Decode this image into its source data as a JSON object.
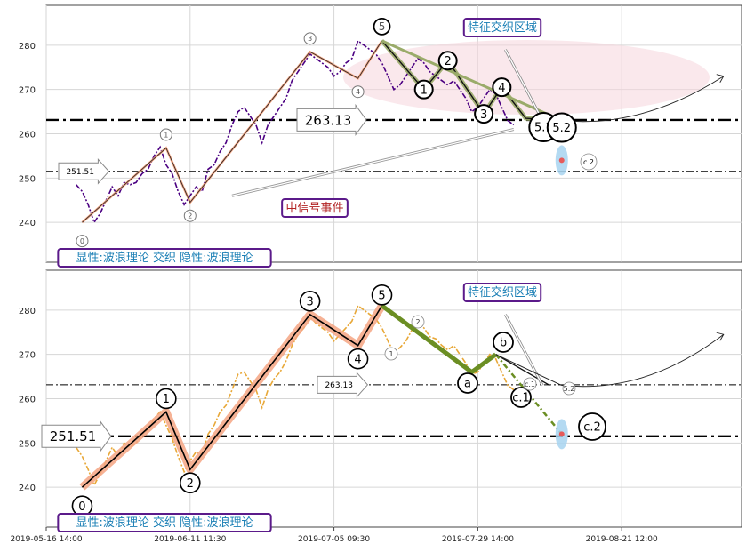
{
  "chart_data": [
    {
      "type": "line",
      "panel": "top",
      "y_ticks": [
        240,
        250,
        260,
        270,
        280
      ],
      "ylim": [
        231,
        289
      ],
      "grid": true,
      "price_series": [
        {
          "name": "",
          "color": "#4b0082",
          "style": "dashed",
          "points": [
            [
              0.5,
              248.5
            ],
            [
              1,
              247
            ],
            [
              1.5,
              244
            ],
            [
              2,
              240
            ],
            [
              2.5,
              242
            ],
            [
              3,
              245
            ],
            [
              3.5,
              248
            ],
            [
              4,
              246
            ],
            [
              4.5,
              249
            ],
            [
              5,
              248.5
            ],
            [
              5.5,
              249
            ],
            [
              6,
              251
            ],
            [
              6.5,
              252
            ],
            [
              7,
              255
            ],
            [
              7.5,
              257
            ],
            [
              8,
              253
            ],
            [
              8.5,
              251
            ],
            [
              9,
              247
            ],
            [
              9.5,
              244
            ],
            [
              10,
              246
            ],
            [
              10.5,
              248
            ],
            [
              11,
              247
            ],
            [
              11.5,
              252
            ],
            [
              12,
              253
            ],
            [
              12.5,
              256
            ],
            [
              13,
              258
            ],
            [
              13.5,
              262
            ],
            [
              14,
              265
            ],
            [
              14.5,
              266
            ],
            [
              15,
              264
            ],
            [
              15.5,
              262
            ],
            [
              16,
              258
            ],
            [
              16.5,
              262
            ],
            [
              17,
              264
            ],
            [
              17.5,
              266
            ],
            [
              18,
              268
            ],
            [
              18.5,
              272
            ],
            [
              19,
              274
            ],
            [
              19.5,
              276
            ],
            [
              20,
              278
            ],
            [
              20.5,
              277
            ],
            [
              21,
              276
            ],
            [
              21.5,
              275
            ],
            [
              22,
              273
            ],
            [
              22.5,
              274
            ],
            [
              23,
              276
            ],
            [
              23.5,
              277
            ],
            [
              24,
              281
            ],
            [
              24.5,
              280
            ],
            [
              25,
              279
            ],
            [
              25.5,
              278
            ],
            [
              26,
              276
            ],
            [
              26.5,
              273
            ],
            [
              27,
              270
            ],
            [
              27.5,
              271
            ],
            [
              28,
              273
            ],
            [
              28.5,
              275
            ],
            [
              29,
              277
            ],
            [
              29.5,
              276
            ],
            [
              30,
              274
            ],
            [
              30.5,
              273
            ],
            [
              31,
              272
            ],
            [
              31.5,
              271
            ],
            [
              32,
              272
            ],
            [
              32.5,
              270
            ],
            [
              33,
              268
            ],
            [
              33.5,
              265
            ],
            [
              34,
              266
            ],
            [
              34.5,
              268
            ],
            [
              35,
              270
            ],
            [
              35.5,
              269
            ],
            [
              36,
              266
            ],
            [
              36.5,
              263
            ],
            [
              37,
              262
            ]
          ]
        }
      ],
      "wave_overlay": {
        "points": [
          [
            1,
            240
          ],
          [
            8,
            256.8
          ],
          [
            10,
            244.5
          ],
          [
            20,
            278.5
          ],
          [
            24,
            272.5
          ],
          [
            26,
            281
          ]
        ],
        "labels": [
          "0",
          "1",
          "2",
          "3",
          "4",
          "5"
        ],
        "label_color": "#555555"
      },
      "green_wave": {
        "points": [
          [
            26,
            281
          ],
          [
            29.5,
            270
          ],
          [
            31.5,
            276.5
          ],
          [
            34.5,
            264.5
          ],
          [
            36,
            270.5
          ],
          [
            38,
            263.5
          ],
          [
            41,
            263
          ]
        ],
        "labels": [
          "0",
          "1",
          "2",
          "3",
          "4",
          "5.1",
          "5.2"
        ]
      },
      "hlines": [
        {
          "value": 263.13,
          "label": "263.13",
          "style": "dash-dot-thick"
        },
        {
          "value": 251.51,
          "label": "251.51",
          "style": "dash-dot-thin"
        }
      ],
      "zone_label": "特征交织区域",
      "event_label": "中信号事件",
      "small_label": "c.2",
      "footer_label": "显性:波浪理论 交织 隐性:波浪理论"
    },
    {
      "type": "line",
      "panel": "bottom",
      "y_ticks": [
        240,
        250,
        260,
        270,
        280
      ],
      "ylim": [
        231,
        289
      ],
      "grid": true,
      "price_series": [
        {
          "name": "",
          "color": "#e8a838",
          "style": "dashed",
          "points": [
            [
              0.5,
              249
            ],
            [
              1,
              247
            ],
            [
              1.5,
              244
            ],
            [
              2,
              240.5
            ],
            [
              2.5,
              243
            ],
            [
              3,
              246
            ],
            [
              3.5,
              249
            ],
            [
              4,
              247
            ],
            [
              4.5,
              250
            ],
            [
              5,
              249
            ],
            [
              5.5,
              250
            ],
            [
              6,
              252
            ],
            [
              6.5,
              253
            ],
            [
              7,
              255.5
            ],
            [
              7.5,
              257
            ],
            [
              8,
              254
            ],
            [
              8.5,
              251
            ],
            [
              9,
              247
            ],
            [
              9.5,
              243.5
            ],
            [
              10,
              246
            ],
            [
              10.5,
              248
            ],
            [
              11,
              247.5
            ],
            [
              11.5,
              252
            ],
            [
              12,
              254
            ],
            [
              12.5,
              257
            ],
            [
              13,
              258.5
            ],
            [
              13.5,
              262
            ],
            [
              14,
              265.5
            ],
            [
              14.5,
              266
            ],
            [
              15,
              264
            ],
            [
              15.5,
              262
            ],
            [
              16,
              258
            ],
            [
              16.5,
              262
            ],
            [
              17,
              264.5
            ],
            [
              17.5,
              266
            ],
            [
              18,
              268.5
            ],
            [
              18.5,
              272
            ],
            [
              19,
              274.5
            ],
            [
              19.5,
              276
            ],
            [
              20,
              278.5
            ],
            [
              20.5,
              277
            ],
            [
              21,
              276
            ],
            [
              21.5,
              275
            ],
            [
              22,
              273
            ],
            [
              22.5,
              274.5
            ],
            [
              23,
              276
            ],
            [
              23.5,
              277.5
            ],
            [
              24,
              281
            ],
            [
              24.5,
              280
            ],
            [
              25,
              279
            ],
            [
              25.5,
              278
            ],
            [
              26,
              276
            ],
            [
              26.5,
              273
            ],
            [
              27,
              270.5
            ],
            [
              27.5,
              271.5
            ],
            [
              28,
              273
            ],
            [
              28.5,
              275.5
            ],
            [
              29,
              277
            ],
            [
              29.5,
              276
            ],
            [
              30,
              274
            ],
            [
              30.5,
              273.5
            ],
            [
              31,
              272
            ],
            [
              31.5,
              271
            ],
            [
              32,
              272
            ],
            [
              32.5,
              270
            ],
            [
              33,
              268
            ],
            [
              33.5,
              265.5
            ],
            [
              34,
              266
            ],
            [
              34.5,
              268
            ],
            [
              35,
              270
            ],
            [
              35.5,
              269
            ],
            [
              36,
              266
            ],
            [
              36.5,
              263
            ],
            [
              37,
              262
            ]
          ]
        }
      ],
      "wave_overlay": {
        "points": [
          [
            1,
            240
          ],
          [
            8,
            257
          ],
          [
            10,
            244
          ],
          [
            20,
            279
          ],
          [
            24,
            272
          ],
          [
            26,
            281
          ]
        ],
        "labels": [
          "0",
          "1",
          "2",
          "3",
          "4",
          "5"
        ]
      },
      "green_wave": {
        "points": [
          [
            26,
            281
          ],
          [
            33.5,
            266
          ],
          [
            35.5,
            270
          ],
          [
            41,
            262
          ]
        ],
        "labels": [
          "a",
          "b",
          "c.1",
          "c.2"
        ]
      },
      "hlines": [
        {
          "value": 263.13,
          "label": "263.13",
          "style": "dash-dot-thin"
        },
        {
          "value": 251.51,
          "label": "251.51",
          "style": "dash-dot-thick"
        }
      ],
      "zone_label": "特征交织区域",
      "small_labels": [
        "1",
        "2",
        "a",
        "c.1",
        "5.2"
      ],
      "footer_label": "显性:波浪理论 交织 隐性:波浪理论"
    }
  ],
  "x_axis": {
    "tick_labels": [
      "2019-05-16 14:00",
      "2019-06-11 11:30",
      "2019-07-05 09:30",
      "2019-07-29 14:00",
      "2019-08-21 12:00"
    ]
  },
  "colors": {
    "purple": "#4b0082",
    "orange": "#e8a838",
    "salmon": "#f4a582",
    "olive": "#6b8e23",
    "sage": "#9aab6a",
    "frame": "#5b1a8a",
    "label_blue": "#1a7fb5",
    "event_red": "#b22222",
    "zone_pink": "#f6d5dc",
    "blue_glow": "#a7d3f0"
  }
}
